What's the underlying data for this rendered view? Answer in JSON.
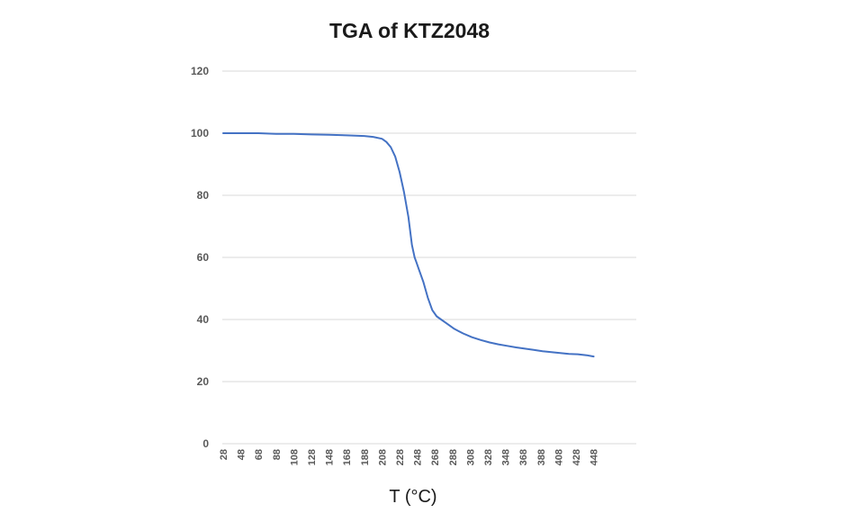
{
  "chart_data": {
    "type": "line",
    "title": "TGA of KTZ2048",
    "xlabel": "T (°C)",
    "ylabel": "",
    "ylim": [
      0,
      120
    ],
    "yticks": [
      0,
      20,
      40,
      60,
      80,
      100,
      120
    ],
    "xlim": [
      28,
      478
    ],
    "categories": [
      "28",
      "48",
      "68",
      "88",
      "108",
      "128",
      "148",
      "168",
      "188",
      "208",
      "228",
      "248",
      "268",
      "288",
      "308",
      "328",
      "348",
      "368",
      "388",
      "408",
      "428",
      "448"
    ],
    "grid": true,
    "legend": "none",
    "colors": {
      "series": "#4472c4",
      "grid": "#d9d9d9",
      "tick": "#595959"
    },
    "series": [
      {
        "name": "",
        "x": [
          28,
          48,
          68,
          88,
          108,
          128,
          148,
          168,
          188,
          198,
          208,
          213,
          218,
          223,
          228,
          233,
          238,
          242,
          245,
          247,
          250,
          255,
          260,
          265,
          270,
          275,
          280,
          285,
          290,
          300,
          310,
          320,
          330,
          340,
          350,
          360,
          370,
          380,
          390,
          400,
          410,
          420,
          430,
          440,
          448
        ],
        "values": [
          100,
          100,
          100,
          99.8,
          99.8,
          99.6,
          99.5,
          99.3,
          99.1,
          98.8,
          98.2,
          97.2,
          95.5,
          92.5,
          87.5,
          81,
          73,
          64,
          60,
          58.5,
          56,
          52,
          47,
          43,
          41,
          40,
          39,
          38,
          37,
          35.5,
          34.3,
          33.4,
          32.6,
          32,
          31.5,
          31,
          30.6,
          30.2,
          29.8,
          29.5,
          29.2,
          28.9,
          28.8,
          28.5,
          28.1
        ]
      }
    ]
  }
}
